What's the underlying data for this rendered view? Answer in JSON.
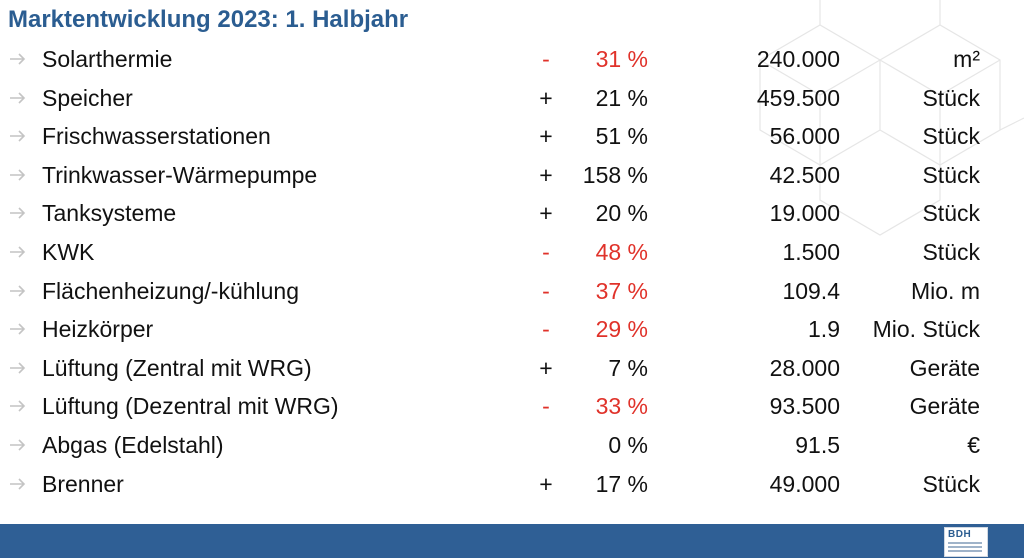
{
  "title": "Marktentwicklung 2023: 1. Halbjahr",
  "rows": [
    {
      "name": "Solarthermie",
      "sign": "-",
      "pct": "31 %",
      "value": "240.000",
      "unit": "m²",
      "negative": true
    },
    {
      "name": "Speicher",
      "sign": "+",
      "pct": "21 %",
      "value": "459.500",
      "unit": "Stück",
      "negative": false
    },
    {
      "name": "Frischwasserstationen",
      "sign": "+",
      "pct": "51 %",
      "value": "56.000",
      "unit": "Stück",
      "negative": false
    },
    {
      "name": "Trinkwasser-Wärmepumpe",
      "sign": "+",
      "pct": "158 %",
      "value": "42.500",
      "unit": "Stück",
      "negative": false
    },
    {
      "name": "Tanksysteme",
      "sign": "+",
      "pct": "20 %",
      "value": "19.000",
      "unit": "Stück",
      "negative": false
    },
    {
      "name": "KWK",
      "sign": "-",
      "pct": "48 %",
      "value": "1.500",
      "unit": "Stück",
      "negative": true
    },
    {
      "name": "Flächenheizung/-kühlung",
      "sign": "-",
      "pct": "37 %",
      "value": "109.4",
      "unit": "Mio. m",
      "negative": true
    },
    {
      "name": "Heizkörper",
      "sign": "-",
      "pct": "29 %",
      "value": "1.9",
      "unit": "Mio. Stück",
      "negative": true
    },
    {
      "name": "Lüftung (Zentral mit WRG)",
      "sign": "+",
      "pct": "7 %",
      "value": "28.000",
      "unit": "Geräte",
      "negative": false
    },
    {
      "name": "Lüftung (Dezentral mit WRG)",
      "sign": "-",
      "pct": "33 %",
      "value": "93.500",
      "unit": "Geräte",
      "negative": true
    },
    {
      "name": "Abgas (Edelstahl)",
      "sign": "",
      "pct": "0 %",
      "value": "91.5",
      "unit": "€",
      "negative": false
    },
    {
      "name": "Brenner",
      "sign": "+",
      "pct": "17 %",
      "value": "49.000",
      "unit": "Stück",
      "negative": false
    }
  ],
  "footer": {
    "logo_text": "BDH"
  },
  "colors": {
    "title": "#2b5d91",
    "negative": "#e0322a",
    "footer": "#2f5f95",
    "arrow": "#c4c4c4"
  }
}
